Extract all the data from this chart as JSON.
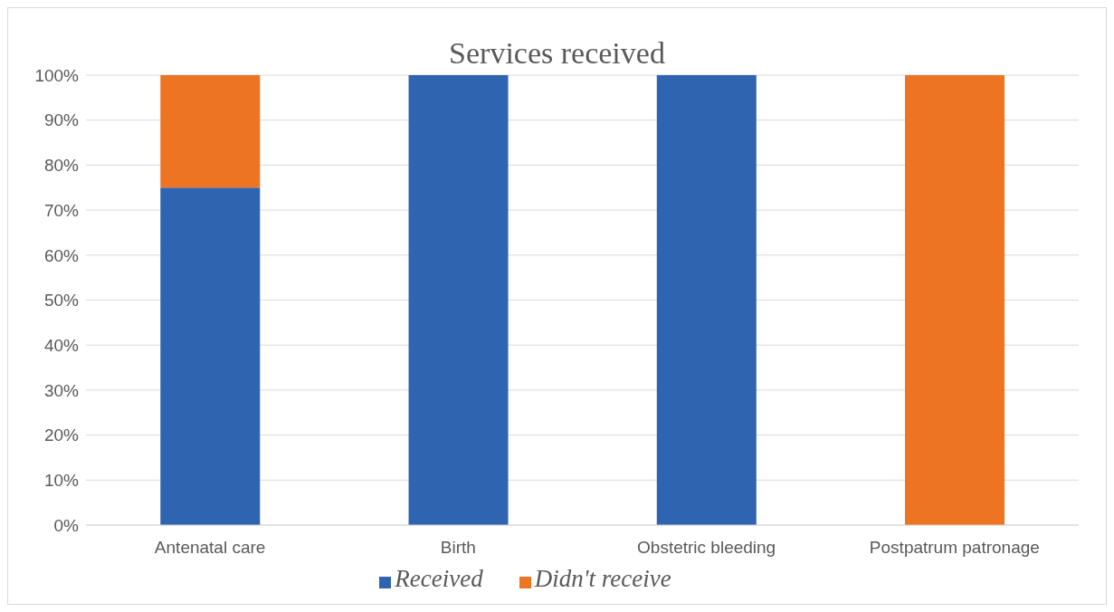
{
  "chart_data": {
    "type": "bar",
    "title": "Services received",
    "categories": [
      "Antenatal care",
      "Birth",
      "Obstetric bleeding",
      "Postpatrum patronage"
    ],
    "stacked": true,
    "series": [
      {
        "name": "Received",
        "color": "#2e64b0",
        "values": [
          75,
          100,
          100,
          0
        ]
      },
      {
        "name": "Didn't receive",
        "color": "#ed7422",
        "values": [
          25,
          0,
          0,
          100
        ]
      }
    ],
    "ylim": [
      0,
      100
    ],
    "yticks": [
      {
        "value": 0,
        "label": "0%"
      },
      {
        "value": 10,
        "label": "10%"
      },
      {
        "value": 20,
        "label": "20%"
      },
      {
        "value": 30,
        "label": "30%"
      },
      {
        "value": 40,
        "label": "40%"
      },
      {
        "value": 50,
        "label": "50%"
      },
      {
        "value": 60,
        "label": "60%"
      },
      {
        "value": 70,
        "label": "70%"
      },
      {
        "value": 80,
        "label": "80%"
      },
      {
        "value": 90,
        "label": "90%"
      },
      {
        "value": 100,
        "label": "100%"
      }
    ],
    "grid": "y",
    "legend": "bottom"
  }
}
